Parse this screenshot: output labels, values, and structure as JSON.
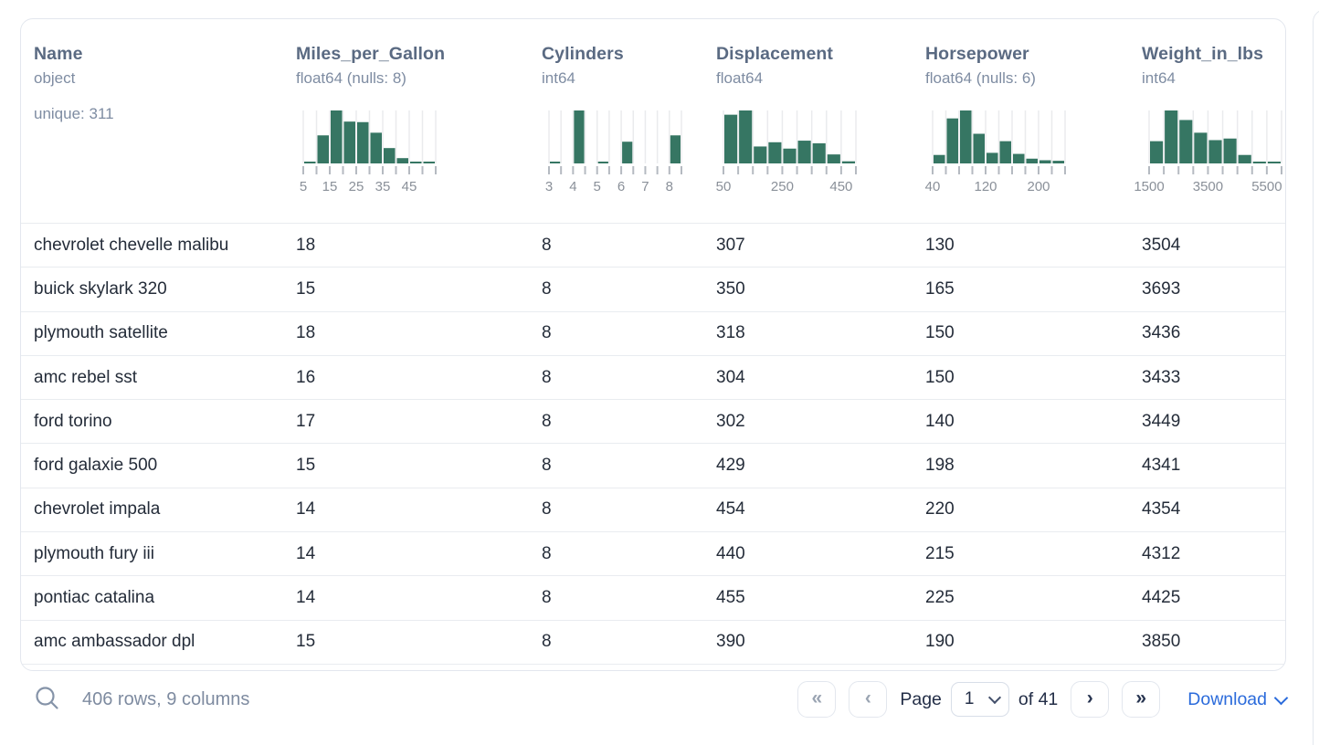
{
  "columns": [
    {
      "name": "Name",
      "type": "object",
      "extra": "unique: 311"
    },
    {
      "name": "Miles_per_Gallon",
      "type": "float64 (nulls: 8)"
    },
    {
      "name": "Cylinders",
      "type": "int64"
    },
    {
      "name": "Displacement",
      "type": "float64"
    },
    {
      "name": "Horsepower",
      "type": "float64 (nulls: 6)"
    },
    {
      "name": "Weight_in_lbs",
      "type": "int64"
    }
  ],
  "chart_data": [
    {
      "type": "histogram",
      "column": "Miles_per_Gallon",
      "bin_start": 5,
      "bin_width": 5,
      "heights": [
        0.03,
        0.53,
        1.0,
        0.79,
        0.78,
        0.58,
        0.29,
        0.1,
        0.02,
        0.02
      ],
      "tick_labels": [
        [
          "5",
          0
        ],
        [
          "15",
          2
        ],
        [
          "25",
          4
        ],
        [
          "35",
          6
        ],
        [
          "45",
          8
        ]
      ]
    },
    {
      "type": "histogram",
      "column": "Cylinders",
      "bin_start": 3,
      "bin_width": 0.5,
      "heights": [
        0.03,
        0,
        1.0,
        0,
        0.03,
        0,
        0.41,
        0,
        0,
        0,
        0.53
      ],
      "tick_labels": [
        [
          "3",
          0
        ],
        [
          "4",
          2
        ],
        [
          "5",
          4
        ],
        [
          "6",
          6
        ],
        [
          "7",
          8
        ],
        [
          "8",
          10
        ]
      ]
    },
    {
      "type": "histogram",
      "column": "Displacement",
      "bin_start": 50,
      "bin_width": 50,
      "heights": [
        0.92,
        1.0,
        0.32,
        0.4,
        0.28,
        0.43,
        0.38,
        0.17,
        0.04
      ],
      "tick_labels": [
        [
          "50",
          0
        ],
        [
          "250",
          4
        ],
        [
          "450",
          8
        ]
      ]
    },
    {
      "type": "histogram",
      "column": "Horsepower",
      "bin_start": 40,
      "bin_width": 20,
      "heights": [
        0.16,
        0.85,
        1.0,
        0.56,
        0.2,
        0.42,
        0.18,
        0.09,
        0.06,
        0.05
      ],
      "tick_labels": [
        [
          "40",
          0
        ],
        [
          "120",
          4
        ],
        [
          "200",
          8
        ]
      ]
    },
    {
      "type": "histogram",
      "column": "Weight_in_lbs",
      "bin_start": 1500,
      "bin_width": 500,
      "heights": [
        0.42,
        1.0,
        0.82,
        0.58,
        0.44,
        0.47,
        0.16,
        0.03,
        0.02
      ],
      "tick_labels": [
        [
          "1500",
          0
        ],
        [
          "3500",
          4
        ],
        [
          "5500",
          8
        ]
      ]
    }
  ],
  "rows": [
    [
      "chevrolet chevelle malibu",
      "18",
      "8",
      "307",
      "130",
      "3504"
    ],
    [
      "buick skylark 320",
      "15",
      "8",
      "350",
      "165",
      "3693"
    ],
    [
      "plymouth satellite",
      "18",
      "8",
      "318",
      "150",
      "3436"
    ],
    [
      "amc rebel sst",
      "16",
      "8",
      "304",
      "150",
      "3433"
    ],
    [
      "ford torino",
      "17",
      "8",
      "302",
      "140",
      "3449"
    ],
    [
      "ford galaxie 500",
      "15",
      "8",
      "429",
      "198",
      "4341"
    ],
    [
      "chevrolet impala",
      "14",
      "8",
      "454",
      "220",
      "4354"
    ],
    [
      "plymouth fury iii",
      "14",
      "8",
      "440",
      "215",
      "4312"
    ],
    [
      "pontiac catalina",
      "14",
      "8",
      "455",
      "225",
      "4425"
    ],
    [
      "amc ambassador dpl",
      "15",
      "8",
      "390",
      "190",
      "3850"
    ]
  ],
  "footer": {
    "summary": "406 rows, 9 columns",
    "pagination": {
      "first_glyph": "«",
      "prev_glyph": "‹",
      "page_label": "Page",
      "page_value": "1",
      "of_label": "of 41",
      "next_glyph": "›",
      "last_glyph": "»"
    },
    "download_label": "Download"
  },
  "colors": {
    "green": "#367663",
    "blue": "#2b6bdb",
    "header_text": "#5a6a82",
    "muted_text": "#7e8ca2",
    "row_text": "#242c39",
    "border": "#e3e7ee",
    "separator": "#e9ecf0",
    "grid": "#eaebed",
    "tick": "#b5bac1",
    "tick_label": "#8a9099",
    "footer_text": "#7e8ba0",
    "chev_disabled": "#9aa4b2",
    "chev_active": "#273450",
    "page_text": "#232e47"
  }
}
